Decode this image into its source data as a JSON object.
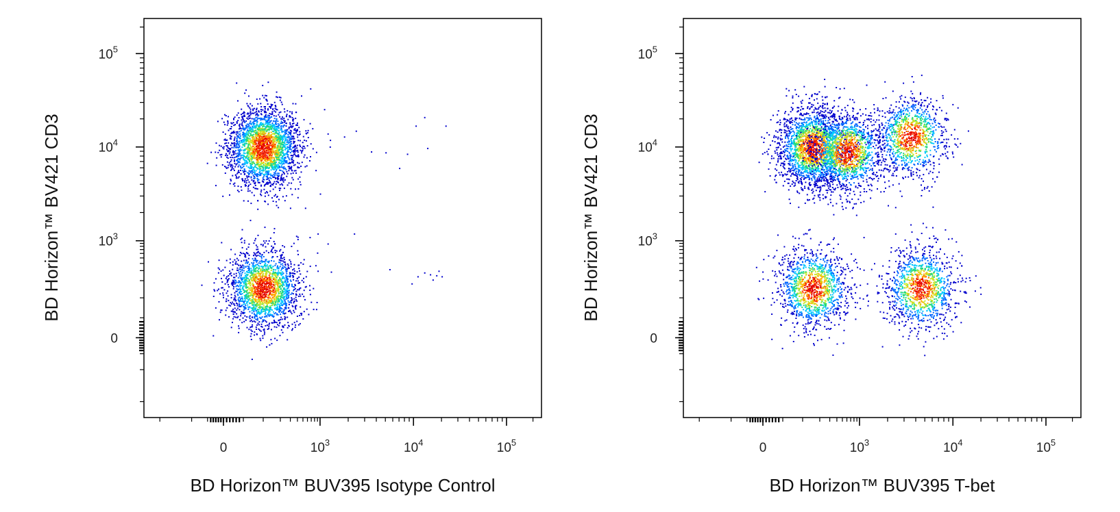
{
  "chart_data": [
    {
      "type": "scatter",
      "xlabel": "BD Horizon™ BUV395 Isotype Control",
      "ylabel": "BD Horizon™ BV421 CD3",
      "x_scale": "biexponential",
      "y_scale": "biexponential",
      "xlim": [
        -250,
        250000
      ],
      "ylim": [
        -250,
        250000
      ],
      "x_ticks": [
        {
          "label": "0",
          "exp": ""
        },
        {
          "label": "10",
          "exp": "3"
        },
        {
          "label": "10",
          "exp": "4"
        },
        {
          "label": "10",
          "exp": "5"
        }
      ],
      "y_ticks": [
        {
          "label": "0",
          "exp": ""
        },
        {
          "label": "10",
          "exp": "3"
        },
        {
          "label": "10",
          "exp": "4"
        },
        {
          "label": "10",
          "exp": "5"
        }
      ],
      "populations": [
        {
          "x_center": 100,
          "y_center": 10000,
          "cells": 2600
        },
        {
          "x_center": 100,
          "y_center": 150,
          "cells": 2000
        }
      ],
      "outliers": [
        [
          1200,
          14000
        ],
        [
          1800,
          13000
        ],
        [
          2400,
          15000
        ],
        [
          3500,
          9000
        ],
        [
          5000,
          8800
        ],
        [
          7000,
          6000
        ],
        [
          8500,
          8500
        ],
        [
          10500,
          17000
        ],
        [
          13000,
          21000
        ],
        [
          14000,
          9800
        ],
        [
          22000,
          17000
        ],
        [
          1200,
          900
        ],
        [
          900,
          1200
        ],
        [
          2300,
          1200
        ],
        [
          650,
          1100
        ],
        [
          1300,
          290
        ],
        [
          900,
          300
        ],
        [
          5500,
          320
        ],
        [
          11000,
          240
        ],
        [
          13000,
          280
        ],
        [
          15000,
          260
        ],
        [
          17500,
          250
        ],
        [
          18500,
          300
        ],
        [
          20000,
          240
        ],
        [
          9500,
          180
        ],
        [
          16000,
          210
        ]
      ],
      "density_colors": [
        "#0000cc",
        "#0066ff",
        "#00c8ff",
        "#22d97a",
        "#c6e82a",
        "#ffb000",
        "#ff3a00",
        "#e00000"
      ]
    },
    {
      "type": "scatter",
      "xlabel": "BD Horizon™ BUV395 T-bet",
      "ylabel": "BD Horizon™ BV421 CD3",
      "x_scale": "biexponential",
      "y_scale": "biexponential",
      "xlim": [
        -250,
        250000
      ],
      "ylim": [
        -250,
        250000
      ],
      "x_ticks": [
        {
          "label": "0",
          "exp": ""
        },
        {
          "label": "10",
          "exp": "3"
        },
        {
          "label": "10",
          "exp": "4"
        },
        {
          "label": "10",
          "exp": "5"
        }
      ],
      "y_ticks": [
        {
          "label": "0",
          "exp": ""
        },
        {
          "label": "10",
          "exp": "3"
        },
        {
          "label": "10",
          "exp": "4"
        },
        {
          "label": "10",
          "exp": "5"
        }
      ],
      "populations": [
        {
          "x_center": 150,
          "y_center": 10000,
          "cells": 2200
        },
        {
          "x_center": 600,
          "y_center": 9000,
          "cells": 1400
        },
        {
          "x_center": 3500,
          "y_center": 13000,
          "cells": 1100
        },
        {
          "x_center": 150,
          "y_center": 150,
          "cells": 1300
        },
        {
          "x_center": 4500,
          "y_center": 150,
          "cells": 1200
        }
      ],
      "outliers": [
        [
          900,
          350
        ],
        [
          1200,
          180
        ],
        [
          1600,
          240
        ],
        [
          2100,
          220
        ],
        [
          2600,
          150
        ],
        [
          700,
          600
        ],
        [
          1100,
          1100
        ],
        [
          2400,
          1200
        ],
        [
          3500,
          1500
        ],
        [
          5000,
          800
        ],
        [
          6000,
          1400
        ],
        [
          8000,
          600
        ],
        [
          2000,
          2400
        ],
        [
          500,
          2200
        ],
        [
          1000,
          330
        ]
      ],
      "density_colors": [
        "#0000cc",
        "#0066ff",
        "#00c8ff",
        "#22d97a",
        "#c6e82a",
        "#ffb000",
        "#ff3a00",
        "#e00000"
      ]
    }
  ]
}
